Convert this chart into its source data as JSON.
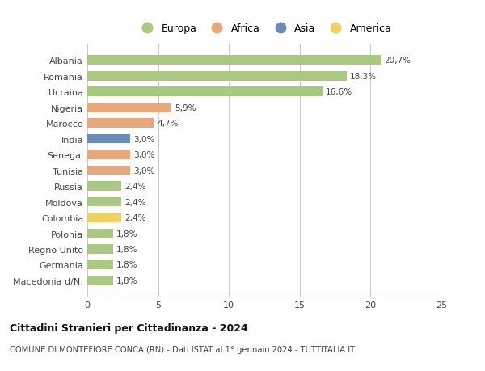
{
  "countries": [
    "Albania",
    "Romania",
    "Ucraina",
    "Nigeria",
    "Marocco",
    "India",
    "Senegal",
    "Tunisia",
    "Russia",
    "Moldova",
    "Colombia",
    "Polonia",
    "Regno Unito",
    "Germania",
    "Macedonia d/N."
  ],
  "values": [
    20.7,
    18.3,
    16.6,
    5.9,
    4.7,
    3.0,
    3.0,
    3.0,
    2.4,
    2.4,
    2.4,
    1.8,
    1.8,
    1.8,
    1.8
  ],
  "labels": [
    "20,7%",
    "18,3%",
    "16,6%",
    "5,9%",
    "4,7%",
    "3,0%",
    "3,0%",
    "3,0%",
    "2,4%",
    "2,4%",
    "2,4%",
    "1,8%",
    "1,8%",
    "1,8%",
    "1,8%"
  ],
  "continents": [
    "Europa",
    "Europa",
    "Europa",
    "Africa",
    "Africa",
    "Asia",
    "Africa",
    "Africa",
    "Europa",
    "Europa",
    "America",
    "Europa",
    "Europa",
    "Europa",
    "Europa"
  ],
  "colors": {
    "Europa": "#a8c97f",
    "Africa": "#e8a87c",
    "Asia": "#6b8cba",
    "America": "#f0d060"
  },
  "xlim": [
    0,
    25
  ],
  "xticks": [
    0,
    5,
    10,
    15,
    20,
    25
  ],
  "title": "Cittadini Stranieri per Cittadinanza - 2024",
  "subtitle": "COMUNE DI MONTEFIORE CONCA (RN) - Dati ISTAT al 1° gennaio 2024 - TUTTITALIA.IT",
  "background_color": "#ffffff",
  "grid_color": "#cccccc",
  "bar_height": 0.6,
  "legend_entries": [
    "Europa",
    "Africa",
    "Asia",
    "America"
  ]
}
